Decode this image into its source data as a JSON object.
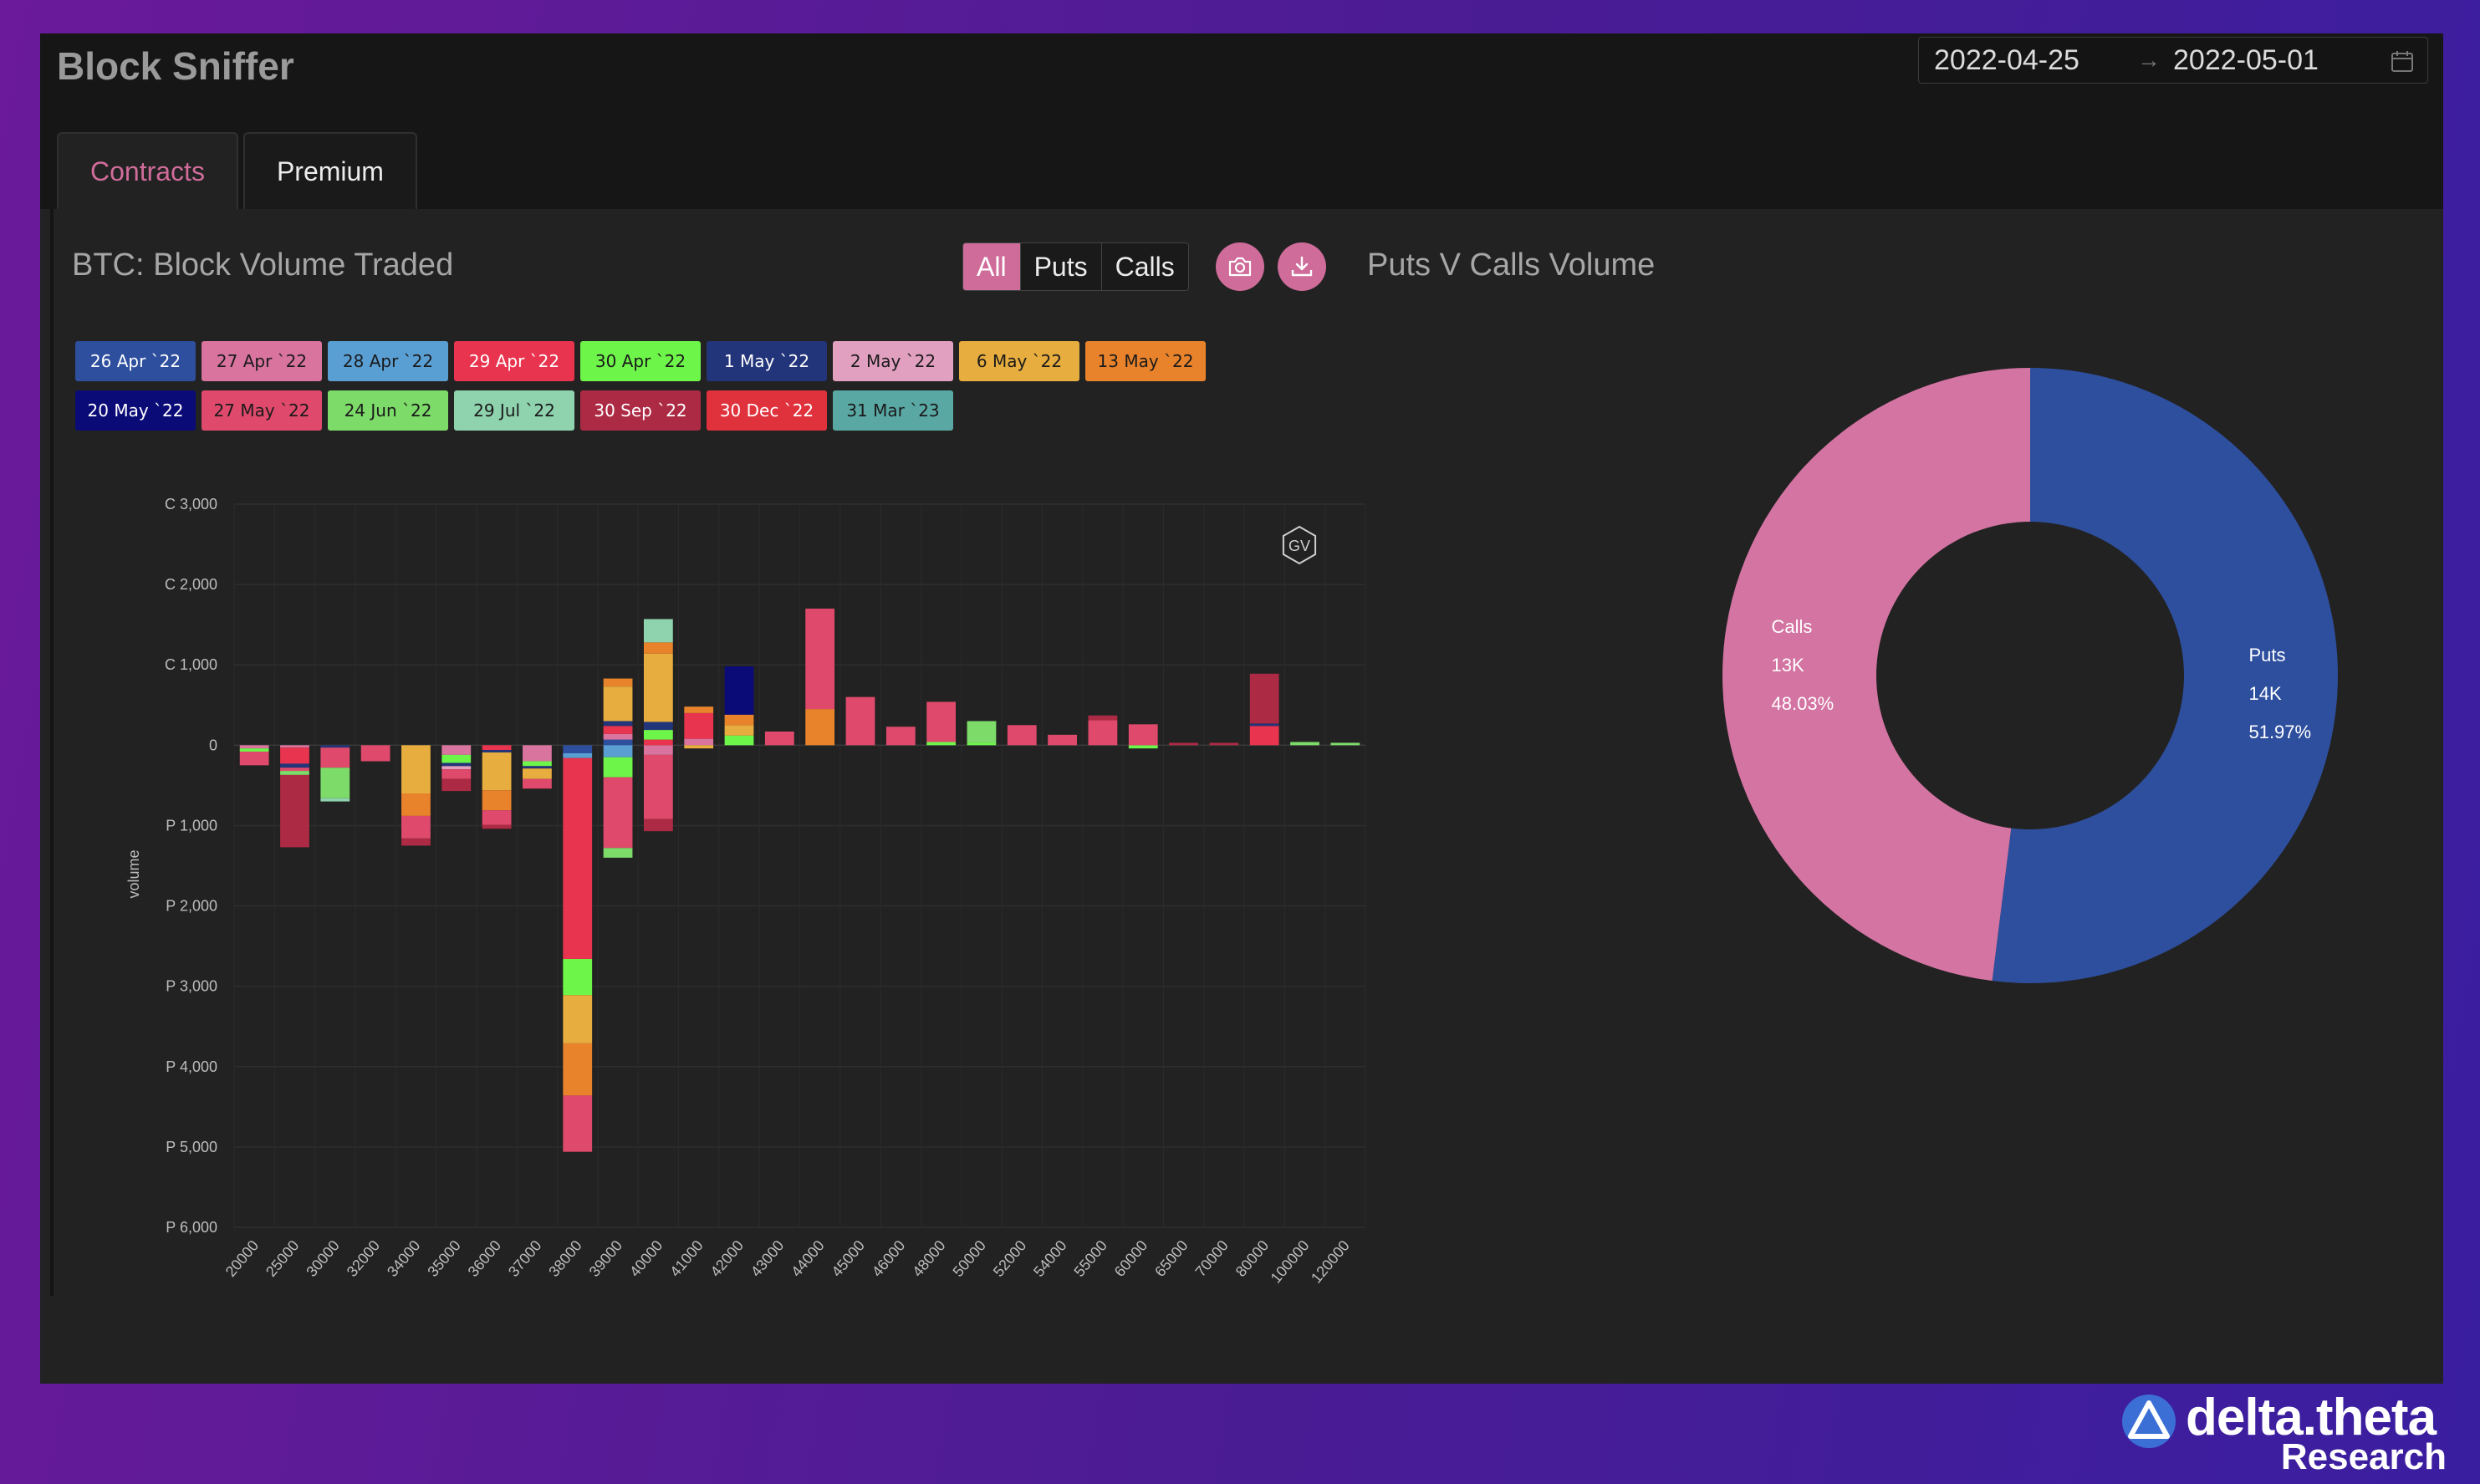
{
  "app": {
    "title": "Block Sniffer",
    "date_range": {
      "start": "2022-04-25",
      "separator": "→",
      "end": "2022-05-01"
    }
  },
  "tabs": [
    {
      "label": "Contracts",
      "active": true
    },
    {
      "label": "Premium",
      "active": false
    }
  ],
  "left_panel": {
    "title": "BTC: Block Volume Traded",
    "filters": [
      {
        "label": "All",
        "active": true
      },
      {
        "label": "Puts",
        "active": false
      },
      {
        "label": "Calls",
        "active": false
      }
    ],
    "icons": [
      "camera-icon",
      "download-icon"
    ]
  },
  "right_panel": {
    "title": "Puts V Calls Volume"
  },
  "watermark": {
    "text": "GV"
  },
  "brand": {
    "name": "delta.theta",
    "sub": "Research"
  },
  "chart_data": [
    {
      "type": "bar",
      "stacked": true,
      "ylabel": "volume",
      "ylim": [
        -6000,
        3000
      ],
      "ytick_labels": [
        {
          "value": 3000,
          "label": "C 3,000"
        },
        {
          "value": 2000,
          "label": "C 2,000"
        },
        {
          "value": 1000,
          "label": "C 1,000"
        },
        {
          "value": 0,
          "label": "0"
        },
        {
          "value": -1000,
          "label": "P 1,000"
        },
        {
          "value": -2000,
          "label": "P 2,000"
        },
        {
          "value": -3000,
          "label": "P 3,000"
        },
        {
          "value": -4000,
          "label": "P 4,000"
        },
        {
          "value": -5000,
          "label": "P 5,000"
        },
        {
          "value": -6000,
          "label": "P 6,000"
        }
      ],
      "categories": [
        "20000",
        "25000",
        "30000",
        "32000",
        "34000",
        "35000",
        "36000",
        "37000",
        "38000",
        "39000",
        "40000",
        "41000",
        "42000",
        "43000",
        "44000",
        "45000",
        "46000",
        "48000",
        "50000",
        "52000",
        "54000",
        "55000",
        "60000",
        "65000",
        "70000",
        "80000",
        "100000",
        "120000"
      ],
      "legend_placement": "top",
      "grid": true,
      "series": [
        {
          "name": "26 Apr `22",
          "color": "#2e4f9e",
          "text_color": "#ffffff",
          "values": [
            0,
            0,
            0,
            0,
            0,
            0,
            0,
            0,
            -100,
            70,
            0,
            0,
            0,
            0,
            0,
            0,
            0,
            0,
            0,
            0,
            0,
            0,
            0,
            0,
            0,
            0,
            0,
            0
          ]
        },
        {
          "name": "27 Apr `22",
          "color": "#d9749f",
          "text_color": "#1a1a1a",
          "values": [
            -40,
            -30,
            0,
            0,
            0,
            -120,
            0,
            -200,
            0,
            70,
            -120,
            80,
            0,
            0,
            0,
            0,
            0,
            0,
            0,
            0,
            0,
            0,
            0,
            0,
            0,
            0,
            0,
            0
          ]
        },
        {
          "name": "28 Apr `22",
          "color": "#5a9fd4",
          "text_color": "#1a1a1a",
          "values": [
            0,
            0,
            0,
            0,
            0,
            0,
            0,
            0,
            -60,
            -150,
            0,
            0,
            0,
            0,
            0,
            0,
            0,
            0,
            0,
            0,
            0,
            0,
            0,
            0,
            0,
            0,
            0,
            0
          ]
        },
        {
          "name": "29 Apr `22",
          "color": "#e8344e",
          "text_color": "#ffffff",
          "values": [
            0,
            -200,
            0,
            0,
            0,
            0,
            -60,
            0,
            -2500,
            100,
            70,
            320,
            0,
            0,
            0,
            0,
            0,
            0,
            0,
            0,
            0,
            0,
            0,
            0,
            0,
            240,
            0,
            0
          ]
        },
        {
          "name": "30 Apr `22",
          "color": "#6ef54a",
          "text_color": "#1a1a1a",
          "values": [
            -40,
            0,
            0,
            0,
            0,
            -100,
            0,
            -60,
            -450,
            -250,
            120,
            0,
            120,
            0,
            0,
            0,
            0,
            40,
            30,
            0,
            0,
            0,
            -40,
            0,
            0,
            0,
            0,
            0
          ]
        },
        {
          "name": "1 May `22",
          "color": "#23357a",
          "text_color": "#ffffff",
          "values": [
            0,
            -50,
            -30,
            0,
            0,
            -40,
            -30,
            -30,
            0,
            60,
            100,
            0,
            0,
            0,
            0,
            0,
            0,
            0,
            0,
            0,
            0,
            0,
            0,
            0,
            0,
            30,
            0,
            0
          ]
        },
        {
          "name": "2 May `22",
          "color": "#e2a0c0",
          "text_color": "#1a1a1a",
          "values": [
            0,
            0,
            0,
            0,
            0,
            -40,
            0,
            0,
            0,
            0,
            0,
            0,
            0,
            0,
            0,
            0,
            0,
            0,
            0,
            0,
            0,
            0,
            0,
            0,
            0,
            0,
            0,
            0
          ]
        },
        {
          "name": "6 May `22",
          "color": "#e7ad3e",
          "text_color": "#1a1a1a",
          "values": [
            0,
            0,
            0,
            0,
            -600,
            0,
            -470,
            -130,
            -600,
            430,
            850,
            -40,
            130,
            0,
            0,
            0,
            0,
            0,
            0,
            0,
            0,
            0,
            0,
            0,
            0,
            0,
            0,
            0
          ]
        },
        {
          "name": "13 May `22",
          "color": "#e8832c",
          "text_color": "#1a1a1a",
          "values": [
            0,
            0,
            0,
            0,
            -280,
            0,
            -250,
            0,
            -650,
            100,
            140,
            80,
            130,
            0,
            450,
            0,
            0,
            0,
            0,
            0,
            0,
            0,
            0,
            0,
            0,
            0,
            0,
            0
          ]
        },
        {
          "name": "20 May `22",
          "color": "#0b0b78",
          "text_color": "#ffffff",
          "values": [
            0,
            0,
            0,
            0,
            0,
            0,
            0,
            0,
            0,
            0,
            0,
            0,
            600,
            0,
            0,
            0,
            0,
            0,
            0,
            0,
            0,
            0,
            0,
            0,
            0,
            0,
            0,
            0
          ]
        },
        {
          "name": "27 May `22",
          "color": "#df4a6c",
          "text_color": "#1a1a1a",
          "values": [
            -170,
            -40,
            -250,
            -200,
            -280,
            -120,
            -180,
            -120,
            -700,
            -880,
            -800,
            0,
            0,
            170,
            1250,
            600,
            230,
            500,
            0,
            250,
            130,
            310,
            260,
            0,
            0,
            0,
            0,
            0
          ]
        },
        {
          "name": "24 Jun `22",
          "color": "#7ddb69",
          "text_color": "#1a1a1a",
          "values": [
            0,
            -50,
            -380,
            0,
            0,
            0,
            0,
            0,
            0,
            -120,
            0,
            0,
            0,
            0,
            0,
            0,
            0,
            0,
            270,
            0,
            0,
            0,
            0,
            0,
            0,
            0,
            40,
            30
          ]
        },
        {
          "name": "29 Jul `22",
          "color": "#8ed2ae",
          "text_color": "#1a1a1a",
          "values": [
            0,
            0,
            -40,
            0,
            0,
            0,
            0,
            0,
            0,
            0,
            290,
            0,
            0,
            0,
            0,
            0,
            0,
            0,
            0,
            0,
            0,
            0,
            0,
            0,
            0,
            0,
            0,
            0
          ]
        },
        {
          "name": "30 Sep `22",
          "color": "#ad2a44",
          "text_color": "#ffffff",
          "values": [
            0,
            -900,
            0,
            0,
            -90,
            -150,
            -50,
            0,
            0,
            0,
            -150,
            0,
            0,
            0,
            0,
            0,
            0,
            0,
            0,
            0,
            0,
            60,
            0,
            30,
            30,
            620,
            0,
            0
          ]
        },
        {
          "name": "30 Dec `22",
          "color": "#e0323d",
          "text_color": "#ffffff",
          "values": [
            0,
            0,
            0,
            0,
            0,
            0,
            0,
            0,
            0,
            0,
            0,
            0,
            0,
            0,
            0,
            0,
            0,
            0,
            0,
            0,
            0,
            0,
            0,
            0,
            0,
            0,
            0,
            0
          ]
        },
        {
          "name": "31 Mar `23",
          "color": "#5aa8a4",
          "text_color": "#1a1a1a",
          "values": [
            0,
            0,
            0,
            0,
            0,
            0,
            0,
            0,
            0,
            0,
            0,
            0,
            0,
            0,
            0,
            0,
            0,
            0,
            0,
            0,
            0,
            0,
            0,
            0,
            0,
            0,
            0,
            0
          ]
        }
      ]
    },
    {
      "type": "pie",
      "donut": true,
      "slices": [
        {
          "name": "Puts",
          "value_label": "14K",
          "percent": 51.97,
          "percent_label": "51.97%",
          "color": "#2e4f9e"
        },
        {
          "name": "Calls",
          "value_label": "13K",
          "percent": 48.03,
          "percent_label": "48.03%",
          "color": "#d474a2"
        }
      ]
    }
  ]
}
